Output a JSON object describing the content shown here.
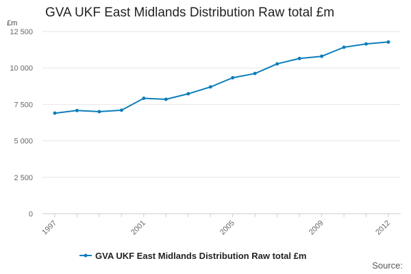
{
  "chart_data": {
    "type": "line",
    "title": "GVA UKF East Midlands Distribution Raw total £m",
    "ylabel": "£m",
    "xlabel": "",
    "ylim": [
      0,
      12500
    ],
    "y_ticks": [
      0,
      2500,
      5000,
      7500,
      10000,
      12500
    ],
    "y_tick_labels": [
      "0",
      "2 500",
      "5 000",
      "7 500",
      "10 000",
      "12 500"
    ],
    "x": [
      1997,
      1998,
      1999,
      2000,
      2001,
      2002,
      2003,
      2004,
      2005,
      2006,
      2007,
      2008,
      2009,
      2010,
      2011,
      2012
    ],
    "x_tick_labels": [
      "1997",
      "2001",
      "2005",
      "2009",
      "2012"
    ],
    "series": [
      {
        "name": "GVA UKF East Midlands Distribution Raw total £m",
        "color": "#0b7dbb",
        "values": [
          6900,
          7080,
          7000,
          7100,
          7920,
          7850,
          8230,
          8700,
          9330,
          9620,
          10280,
          10650,
          10800,
          11420,
          11650,
          11780
        ]
      }
    ],
    "legend": {
      "position": "bottom",
      "label": "GVA UKF East Midlands Distribution Raw total £m"
    },
    "grid": true
  },
  "source_label": "Source:"
}
